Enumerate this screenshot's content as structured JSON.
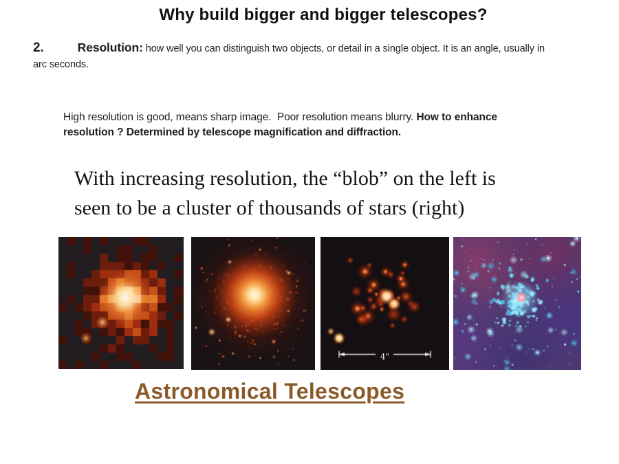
{
  "slide": {
    "title": "Why build bigger and bigger telescopes?",
    "point": {
      "number": "2.",
      "term": "Resolution:",
      "definition": " how well you can distinguish two objects, or detail in a single object. It is an angle, usually in arc seconds."
    },
    "note": {
      "regular": "High resolution is good, means sharp image.  Poor resolution means blurry. ",
      "bold": "How to enhance resolution ? Determined by telescope magnification and diffraction."
    },
    "caption": {
      "line1": "With increasing resolution, the “blob” on the left is",
      "line2": "seen to be a cluster of thousands of stars (right)"
    },
    "figures": [
      {
        "name": "pixelated-blob-lowest-resolution",
        "scale_label": ""
      },
      {
        "name": "diffuse-red-cluster-medium-resolution",
        "scale_label": ""
      },
      {
        "name": "resolved-red-stars-high-resolution",
        "scale_label": "4\""
      },
      {
        "name": "blue-star-cluster-highest-resolution",
        "scale_label": ""
      }
    ],
    "footer_heading": "Astronomical Telescopes",
    "colors": {
      "footer_heading": "#8a5a29",
      "body_text": "#1b1b1b"
    }
  }
}
